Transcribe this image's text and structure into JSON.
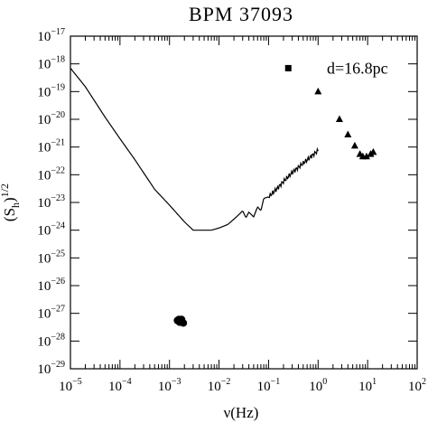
{
  "chart_data": {
    "type": "line",
    "title": "BPM 37093",
    "xlabel": "ν(Hz)",
    "ylabel": "(S_h)^1/2",
    "ylabel_parts": {
      "base": "(S",
      "sub": "h",
      "close": ")",
      "sup": "1/2"
    },
    "x_scale": "log",
    "y_scale": "log",
    "xlim": [
      1e-05,
      100
    ],
    "ylim": [
      1e-29,
      1e-17
    ],
    "grid": false,
    "x_ticks": [
      {
        "value": 1e-05,
        "base": "10",
        "exp": "−5"
      },
      {
        "value": 0.0001,
        "base": "10",
        "exp": "−4"
      },
      {
        "value": 0.001,
        "base": "10",
        "exp": "−3"
      },
      {
        "value": 0.01,
        "base": "10",
        "exp": "−2"
      },
      {
        "value": 0.1,
        "base": "10",
        "exp": "−1"
      },
      {
        "value": 1,
        "base": "10",
        "exp": "0"
      },
      {
        "value": 10,
        "base": "10",
        "exp": "1"
      },
      {
        "value": 100,
        "base": "10",
        "exp": "2"
      }
    ],
    "y_ticks": [
      {
        "value": 1e-17,
        "base": "10",
        "exp": "−17"
      },
      {
        "value": 1e-18,
        "base": "10",
        "exp": "−18"
      },
      {
        "value": 1e-19,
        "base": "10",
        "exp": "−19"
      },
      {
        "value": 1e-20,
        "base": "10",
        "exp": "−20"
      },
      {
        "value": 1e-21,
        "base": "10",
        "exp": "−21"
      },
      {
        "value": 1e-22,
        "base": "10",
        "exp": "−22"
      },
      {
        "value": 1e-23,
        "base": "10",
        "exp": "−23"
      },
      {
        "value": 1e-24,
        "base": "10",
        "exp": "−24"
      },
      {
        "value": 1e-25,
        "base": "10",
        "exp": "−25"
      },
      {
        "value": 1e-26,
        "base": "10",
        "exp": "−26"
      },
      {
        "value": 1e-27,
        "base": "10",
        "exp": "−27"
      },
      {
        "value": 1e-28,
        "base": "10",
        "exp": "−28"
      },
      {
        "value": 1e-29,
        "base": "10",
        "exp": "−29"
      }
    ],
    "annotation": {
      "text": "d=16.8pc",
      "x": 1.5,
      "y": 7e-19
    },
    "series": [
      {
        "type": "line",
        "x": [
          1e-05,
          2e-05,
          5e-05,
          0.0001,
          0.0002,
          0.0005,
          0.001,
          0.002,
          0.003,
          0.005,
          0.007,
          0.01,
          0.015,
          0.02,
          0.025,
          0.03,
          0.035,
          0.04,
          0.05,
          0.06,
          0.07,
          0.08,
          0.1,
          0.15,
          0.2,
          0.3,
          0.5,
          1
        ],
        "y": [
          7e-19,
          1.5e-19,
          1.2e-20,
          2e-21,
          3.5e-22,
          3e-23,
          8e-24,
          2e-24,
          1e-24,
          1e-24,
          1e-24,
          1.2e-24,
          1.6e-24,
          2.5e-24,
          3.6e-24,
          5e-24,
          2.8e-24,
          4.5e-24,
          3e-24,
          7e-24,
          5e-24,
          1.4e-23,
          1.6e-23,
          3.2e-23,
          5.7e-23,
          1.2e-22,
          2.6e-22,
          7.5e-22
        ],
        "oscillating_segment": [
          0.1,
          1
        ]
      },
      {
        "type": "scatter",
        "marker": "square",
        "x": [
          0.25
        ],
        "y": [
          7e-19
        ]
      },
      {
        "type": "scatter",
        "marker": "triangle",
        "x": [
          1,
          2.7,
          4,
          5.5,
          7,
          8,
          9.5,
          11.5,
          13
        ],
        "y": [
          1e-19,
          1e-20,
          2.8e-21,
          1.1e-21,
          5.5e-22,
          4.5e-22,
          4.5e-22,
          5.5e-22,
          6.5e-22
        ]
      },
      {
        "type": "scatter",
        "marker": "circle",
        "x": [
          0.00145,
          0.00155,
          0.00165,
          0.00175,
          0.0019,
          0.0016,
          0.0017
        ],
        "y": [
          5.5e-28,
          6e-28,
          5e-28,
          6e-28,
          4.5e-28,
          4.8e-28,
          5.2e-28
        ]
      }
    ]
  }
}
